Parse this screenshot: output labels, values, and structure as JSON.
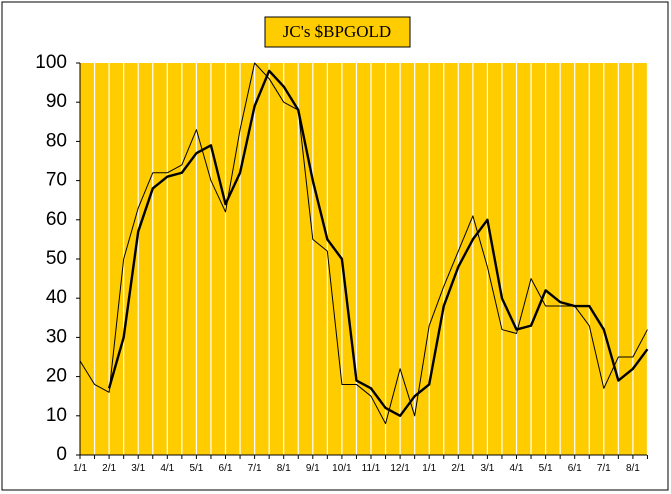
{
  "chart_data": {
    "type": "line",
    "title": "JC's $BPGOLD",
    "categories": [
      "1/1",
      null,
      "2/1",
      null,
      "3/1",
      null,
      "4/1",
      null,
      "5/1",
      null,
      "6/1",
      null,
      "7/1",
      null,
      "8/1",
      null,
      "9/1",
      null,
      "10/1",
      null,
      "11/1",
      null,
      "12/1",
      null,
      "1/1",
      null,
      "2/1",
      null,
      "3/1",
      null,
      "4/1",
      null,
      "5/1",
      null,
      "6/1",
      null,
      "7/1",
      null,
      "8/1",
      null
    ],
    "series": [
      {
        "color": "#000000",
        "values": [
          24,
          18,
          16,
          50,
          63,
          72,
          72,
          74,
          83,
          70,
          62,
          83,
          100,
          96,
          90,
          88,
          55,
          52,
          18,
          18,
          15,
          8,
          22,
          10,
          33,
          43,
          52,
          61,
          48,
          32,
          31,
          45,
          38,
          38,
          38,
          33,
          17,
          25,
          25,
          32
        ]
      },
      {
        "color": "#000000",
        "values": [
          null,
          null,
          17,
          30,
          57,
          68,
          71,
          72,
          77,
          79,
          64,
          72,
          89,
          98,
          94,
          88,
          70,
          55,
          50,
          19,
          17,
          12,
          10,
          15,
          18,
          38,
          48,
          55,
          60,
          40,
          32,
          33,
          42,
          39,
          38,
          38,
          32,
          19,
          22,
          27
        ]
      }
    ],
    "ylim": [
      0,
      100
    ],
    "yticks": [
      0,
      10,
      20,
      30,
      40,
      50,
      60,
      70,
      80,
      90,
      100
    ],
    "grid": true,
    "background": "#ffcc00"
  }
}
